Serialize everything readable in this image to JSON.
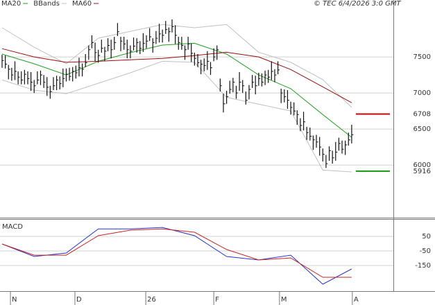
{
  "chart_data": [
    {
      "type": "ohlc",
      "note": "© TEC 6/4/2026 3:0 GMT",
      "xlim": [
        -0.65,
        122
      ],
      "ylim": [
        5280,
        8290
      ],
      "yticks": [
        6000,
        6500,
        7000,
        7500
      ],
      "grid": true,
      "bar_color": "#111111",
      "high": [
        7530,
        7520,
        7390,
        7350,
        7440,
        7300,
        7300,
        7320,
        7300,
        7290,
        7180,
        7300,
        7310,
        7250,
        7220,
        7100,
        7220,
        7240,
        7230,
        7340,
        7340,
        7350,
        7360,
        7380,
        7490,
        7410,
        7540,
        7660,
        7800,
        7700,
        7600,
        7740,
        7640,
        7760,
        7740,
        7780,
        7970,
        7780,
        7780,
        7740,
        7660,
        7770,
        7760,
        7720,
        7830,
        7800,
        7900,
        7760,
        7860,
        7960,
        7880,
        8000,
        7910,
        8020,
        7940,
        7780,
        7780,
        7660,
        7780,
        7690,
        7560,
        7540,
        7460,
        7480,
        7580,
        7430,
        7620,
        7660,
        7200,
        6990,
        7030,
        7170,
        7210,
        7100,
        7290,
        7180,
        7020,
        7110,
        7250,
        7240,
        7280,
        7270,
        7310,
        7320,
        7440,
        7330,
        7440,
        7060,
        7050,
        7040,
        6880,
        6870,
        6760,
        6650,
        6740,
        6530,
        6520,
        6410,
        6420,
        6390,
        6230,
        6140,
        6260,
        6200,
        6320,
        6380,
        6340,
        6340,
        6450,
        6560
      ],
      "low": [
        7350,
        7340,
        7190,
        7170,
        7180,
        7120,
        7120,
        7120,
        7120,
        7030,
        7000,
        7120,
        7110,
        7070,
        6960,
        6920,
        7040,
        7040,
        7050,
        7080,
        7160,
        7170,
        7160,
        7200,
        7230,
        7230,
        7360,
        7460,
        7620,
        7440,
        7420,
        7560,
        7440,
        7580,
        7480,
        7600,
        7790,
        7580,
        7600,
        7480,
        7480,
        7590,
        7560,
        7540,
        7570,
        7620,
        7720,
        7560,
        7680,
        7700,
        7700,
        7820,
        7710,
        7840,
        7680,
        7600,
        7600,
        7460,
        7600,
        7430,
        7380,
        7360,
        7260,
        7300,
        7320,
        7250,
        7440,
        7460,
        7020,
        6730,
        6850,
        6990,
        7010,
        6920,
        7030,
        7000,
        6840,
        6910,
        7070,
        6980,
        7100,
        7090,
        7110,
        7140,
        7180,
        7150,
        7260,
        6860,
        6870,
        6780,
        6700,
        6690,
        6560,
        6470,
        6480,
        6350,
        6340,
        6210,
        6240,
        6130,
        6050,
        5960,
        6060,
        6020,
        6060,
        6200,
        6160,
        6140,
        6270,
        6300
      ],
      "close": [
        7450,
        7400,
        7330,
        7250,
        7300,
        7220,
        7180,
        7260,
        7200,
        7150,
        7100,
        7180,
        7250,
        7150,
        7080,
        7020,
        7100,
        7180,
        7130,
        7200,
        7260,
        7230,
        7300,
        7280,
        7350,
        7330,
        7420,
        7600,
        7700,
        7560,
        7520,
        7620,
        7580,
        7660,
        7600,
        7700,
        7850,
        7720,
        7680,
        7600,
        7580,
        7650,
        7700,
        7620,
        7690,
        7720,
        7780,
        7700,
        7760,
        7820,
        7800,
        7880,
        7850,
        7920,
        7800,
        7700,
        7660,
        7600,
        7680,
        7550,
        7480,
        7420,
        7400,
        7380,
        7440,
        7350,
        7500,
        7600,
        7100,
        6850,
        6950,
        7050,
        7150,
        7000,
        7150,
        7100,
        6900,
        7050,
        7150,
        7100,
        7200,
        7150,
        7250,
        7220,
        7300,
        7250,
        7320,
        7000,
        6950,
        6900,
        6800,
        6750,
        6700,
        6550,
        6600,
        6450,
        6400,
        6350,
        6320,
        6250,
        6150,
        6020,
        6200,
        6100,
        6180,
        6300,
        6220,
        6280,
        6350,
        6420
      ],
      "series": [
        {
          "name": "MA20",
          "color": "#1ea01e",
          "x": [
            0,
            10,
            20,
            30,
            40,
            50,
            60,
            70,
            80,
            90,
            100,
            109
          ],
          "values": [
            7540,
            7405,
            7250,
            7440,
            7560,
            7665,
            7690,
            7540,
            7250,
            7060,
            6700,
            6385
          ]
        },
        {
          "name": "BBands",
          "color": "#c0c0c0",
          "x": [
            0,
            10,
            20,
            30,
            40,
            50,
            60,
            70,
            80,
            90,
            100,
            109
          ],
          "values": [
            7905,
            7635,
            7405,
            7760,
            7855,
            7950,
            7905,
            7950,
            7565,
            7425,
            7185,
            6800
          ],
          "lower": [
            7180,
            7040,
            6990,
            7135,
            7280,
            7440,
            7425,
            6940,
            6845,
            6750,
            5930,
            5905
          ]
        },
        {
          "name": "MA60",
          "color": "#9b0d0d",
          "x": [
            0,
            10,
            20,
            30,
            40,
            50,
            60,
            70,
            80,
            90,
            100,
            109
          ],
          "values": [
            7615,
            7500,
            7425,
            7440,
            7460,
            7480,
            7520,
            7565,
            7500,
            7325,
            7085,
            6865
          ]
        }
      ],
      "levels": [
        {
          "value": 6708,
          "color": "#cc0000"
        },
        {
          "value": 5916,
          "color": "#119911"
        }
      ]
    },
    {
      "type": "line",
      "title": "MACD",
      "xlim": [
        -0.65,
        122
      ],
      "ylim": [
        -317,
        160
      ],
      "yticks": [
        50,
        -50,
        -150
      ],
      "grid": true,
      "xticks": [
        {
          "value": 2.6,
          "label": "N"
        },
        {
          "value": 22.7,
          "label": "D"
        },
        {
          "value": 44.8,
          "label": "26"
        },
        {
          "value": 66,
          "label": "F"
        },
        {
          "value": 86.5,
          "label": "M"
        },
        {
          "value": 109.2,
          "label": "A"
        }
      ],
      "series": [
        {
          "color": "#2233cc",
          "x": [
            0,
            10,
            20,
            30,
            40,
            50,
            60,
            70,
            80,
            90,
            100,
            109
          ],
          "values": [
            -2,
            -88,
            -64,
            102,
            102,
            112,
            55,
            -88,
            -112,
            -79,
            -279,
            -174
          ]
        },
        {
          "color": "#cc2222",
          "x": [
            0,
            10,
            20,
            30,
            40,
            50,
            60,
            70,
            80,
            90,
            100,
            109
          ],
          "values": [
            -2,
            -79,
            -79,
            55,
            93,
            102,
            79,
            -40,
            -112,
            -98,
            -231,
            -231
          ]
        }
      ]
    }
  ]
}
